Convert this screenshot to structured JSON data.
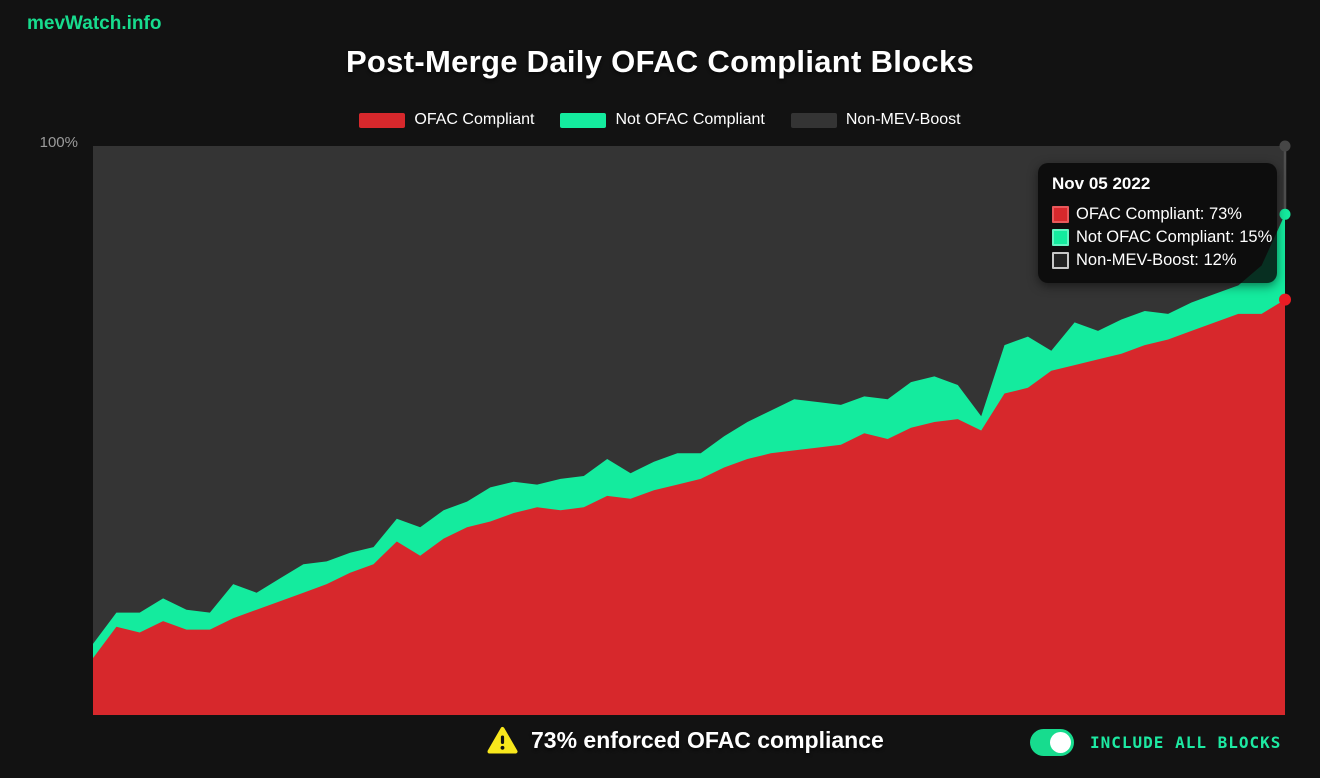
{
  "brand": {
    "logo_text": "mevWatch.info"
  },
  "header": {
    "title": "Post-Merge Daily OFAC Compliant Blocks"
  },
  "colors": {
    "page_bg": "#121212",
    "plot_bg": "#343434",
    "red": "#d7282c",
    "green": "#14eb9e",
    "gray_series": "#343434",
    "accent_green": "#17dc8e",
    "toggle_label_green": "#1de9a2",
    "axis_label": "#9b9b9b",
    "marker_red": "#ea1c24",
    "marker_green": "#14eb9e",
    "marker_gray": "#464646",
    "crosshair": "#4f4f4f",
    "warning_yellow": "#f8e71c"
  },
  "legend": {
    "items": [
      {
        "label": "OFAC Compliant",
        "color": "#d7282c"
      },
      {
        "label": "Not OFAC Compliant",
        "color": "#14eb9e"
      },
      {
        "label": "Non-MEV-Boost",
        "color": "#343434"
      }
    ]
  },
  "y_axis": {
    "max_label": "100%"
  },
  "tooltip": {
    "date": "Nov 05 2022",
    "rows": [
      {
        "text": "OFAC Compliant: 73%",
        "swatch_color": "#d7282c",
        "swatch_border": "#e8585b"
      },
      {
        "text": "Not OFAC Compliant: 15%",
        "swatch_color": "#14eb9e",
        "swatch_border": "#63f4c2"
      },
      {
        "text": "Non-MEV-Boost: 12%",
        "swatch_color": "#222222",
        "swatch_border": "#c8c8c8"
      }
    ]
  },
  "footer": {
    "warning_text": "73% enforced OFAC compliance",
    "toggle_label": "INCLUDE ALL BLOCKS",
    "toggle_state": "on"
  },
  "chart_data": {
    "type": "area",
    "stacking": "percent",
    "title": "Post-Merge Daily OFAC Compliant Blocks",
    "xlabel": "",
    "ylabel": "",
    "ylim": [
      0,
      100
    ],
    "y_tick_labels": [
      "100%"
    ],
    "x_tick_labels": [],
    "grid": false,
    "legend_position": "top",
    "hovered_point": {
      "date": "Nov 05 2022",
      "ofac_compliant_pct": 73,
      "not_ofac_compliant_pct": 15,
      "non_mev_boost_pct": 12
    },
    "series": [
      {
        "name": "OFAC Compliant",
        "color": "#d7282c",
        "values": [
          10,
          15.5,
          14.5,
          16.5,
          15,
          15,
          17,
          18.5,
          20,
          21.5,
          23,
          25,
          26.5,
          30.5,
          28,
          31,
          33,
          34,
          35.5,
          36.5,
          36,
          36.5,
          38.5,
          38,
          39.5,
          40.5,
          41.5,
          43.5,
          45,
          46,
          46.5,
          47,
          47.5,
          49.5,
          48.5,
          50.5,
          51.5,
          52,
          50,
          56.5,
          57.5,
          60.5,
          61.5,
          62.5,
          63.5,
          65,
          66,
          67.5,
          69,
          70.5,
          70.5,
          73
        ]
      },
      {
        "name": "Not OFAC Compliant",
        "color": "#14eb9e",
        "values": [
          2.5,
          2.5,
          3.5,
          4,
          3.5,
          3,
          6,
          3,
          4,
          5,
          4,
          3.5,
          3,
          4,
          5,
          5,
          4.5,
          6,
          5.5,
          4,
          5.5,
          5.5,
          6.5,
          4.5,
          5,
          5.5,
          4.5,
          5.5,
          6.5,
          7.5,
          9,
          8,
          7,
          6.5,
          7,
          8,
          8,
          6,
          2.5,
          8.5,
          9,
          3.5,
          7.5,
          5,
          6,
          6,
          4.5,
          5,
          5,
          5,
          8.5,
          15
        ]
      },
      {
        "name": "Non-MEV-Boost",
        "color": "#343434",
        "values": [
          87.5,
          82,
          82,
          79.5,
          81.5,
          82,
          77,
          78.5,
          76,
          73.5,
          73,
          71.5,
          70.5,
          65.5,
          67,
          64,
          62.5,
          60,
          59,
          59.5,
          58.5,
          58,
          55,
          57.5,
          55.5,
          54,
          54,
          51,
          48.5,
          46.5,
          44.5,
          45,
          45.5,
          44,
          44.5,
          41.5,
          40.5,
          42,
          47.5,
          35,
          33.5,
          36,
          31,
          32.5,
          30.5,
          29,
          29.5,
          27.5,
          26,
          24.5,
          21,
          12
        ]
      }
    ]
  }
}
